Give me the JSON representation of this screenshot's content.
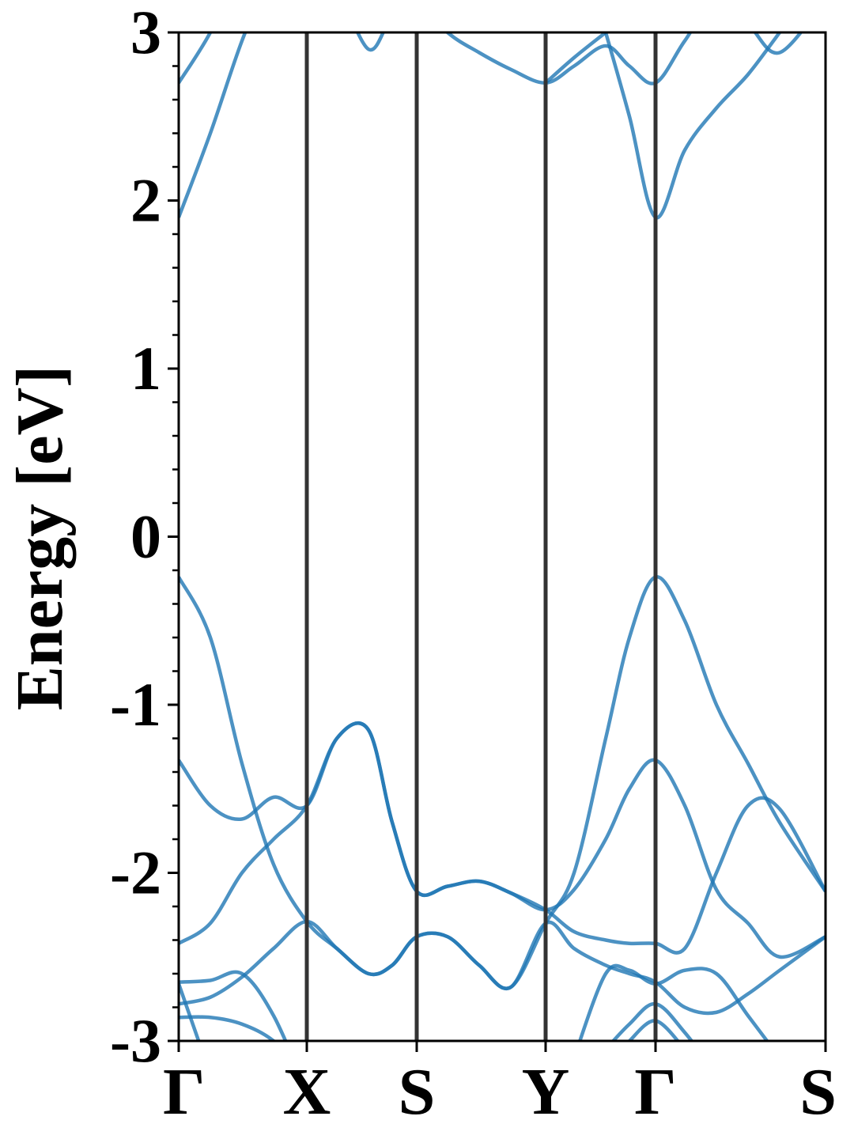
{
  "chart_data": {
    "type": "line",
    "y_label": "Energy [eV]",
    "x": [
      0,
      0.4,
      0.8,
      1.2,
      1.62,
      2.0,
      2.4,
      2.7,
      3.01,
      3.4,
      3.8,
      4.2,
      4.64,
      5.0,
      5.4,
      5.7,
      6.03,
      6.4,
      6.8,
      7.2,
      7.6,
      8.18
    ],
    "xlim": [
      0,
      8.18
    ],
    "xticks": [
      {
        "value": 0,
        "label": "Γ"
      },
      {
        "value": 1.62,
        "label": "X"
      },
      {
        "value": 3.01,
        "label": "S"
      },
      {
        "value": 4.64,
        "label": "Y"
      },
      {
        "value": 6.03,
        "label": "Γ"
      },
      {
        "value": 8.18,
        "label": "S"
      }
    ],
    "ylim": [
      -3,
      3
    ],
    "yticks": [
      -3,
      -2,
      -1,
      0,
      1,
      2,
      3
    ],
    "yminorticks": [
      -2.8,
      -2.6,
      -2.4,
      -2.2,
      -1.8,
      -1.6,
      -1.4,
      -1.2,
      -0.8,
      -0.6,
      -0.4,
      -0.2,
      0.2,
      0.4,
      0.6,
      0.8,
      1.2,
      1.4,
      1.6,
      1.8,
      2.2,
      2.4,
      2.6,
      2.8
    ],
    "vertical_lines": true,
    "color": "#1f77b4",
    "series": [
      {
        "values": [
          -0.24,
          -0.6,
          -1.35,
          -1.95,
          -2.29,
          -2.45,
          -2.6,
          -2.55,
          -2.38,
          -2.38,
          -2.55,
          -2.68,
          -2.3,
          -2.0,
          -1.2,
          -0.6,
          -0.24,
          -0.5,
          -1.0,
          -1.35,
          -1.7,
          -2.11
        ]
      },
      {
        "values": [
          -1.33,
          -1.6,
          -1.68,
          -1.55,
          -1.6,
          -1.2,
          -1.15,
          -1.7,
          -2.11,
          -2.08,
          -2.05,
          -2.12,
          -2.22,
          -2.1,
          -1.8,
          -1.5,
          -1.33,
          -1.6,
          -2.1,
          -2.3,
          -2.5,
          -2.38
        ]
      },
      {
        "values": [
          -2.42,
          -2.3,
          -2.0,
          -1.8,
          -1.6,
          -1.2,
          -1.15,
          -1.7,
          -2.11,
          -2.08,
          -2.05,
          -2.12,
          -2.22,
          -2.35,
          -2.4,
          -2.42,
          -2.42,
          -2.45,
          -2.0,
          -1.6,
          -1.62,
          -2.11
        ]
      },
      {
        "values": [
          -2.78,
          -2.74,
          -2.62,
          -2.45,
          -2.29,
          -2.45,
          -2.6,
          -2.55,
          -2.38,
          -2.38,
          -2.55,
          -2.68,
          -2.3,
          -2.45,
          -2.55,
          -2.6,
          -2.65,
          -2.8,
          -2.83,
          -2.72,
          -2.58,
          -2.38
        ]
      },
      {
        "values": [
          -2.65,
          -2.64,
          -2.6,
          -2.85,
          -3.3,
          null,
          null,
          null,
          null,
          null,
          null,
          null,
          null,
          -3.1,
          -2.6,
          -2.58,
          -2.66,
          -2.58,
          -2.6,
          -2.85,
          -3.1,
          null
        ]
      },
      {
        "values": [
          -2.66,
          -3.2,
          null,
          null,
          null,
          null,
          null,
          null,
          null,
          null,
          null,
          null,
          null,
          null,
          -3.05,
          -2.9,
          -2.78,
          -2.95,
          -3.2,
          null,
          null,
          null
        ]
      },
      {
        "values": [
          -2.86,
          -2.86,
          -2.9,
          -3.0,
          -3.2,
          null,
          null,
          null,
          null,
          null,
          null,
          null,
          null,
          null,
          null,
          -3.0,
          -2.88,
          -3.05,
          null,
          null,
          null,
          null
        ]
      },
      {
        "values": [
          1.9,
          2.4,
          2.95,
          3.4,
          null,
          null,
          null,
          null,
          null,
          null,
          null,
          null,
          null,
          null,
          3.0,
          2.5,
          1.9,
          2.3,
          2.55,
          2.75,
          3.0,
          null
        ]
      },
      {
        "values": [
          2.7,
          3.0,
          3.4,
          null,
          null,
          3.3,
          2.9,
          3.1,
          3.2,
          3.0,
          2.88,
          2.78,
          2.7,
          2.8,
          2.92,
          2.8,
          2.7,
          2.95,
          3.2,
          3.05,
          2.88,
          3.2
        ]
      },
      {
        "values": [
          null,
          null,
          null,
          null,
          null,
          null,
          null,
          null,
          null,
          null,
          null,
          null,
          2.7,
          2.85,
          3.0,
          null,
          null,
          null,
          null,
          null,
          null,
          null
        ]
      }
    ]
  }
}
